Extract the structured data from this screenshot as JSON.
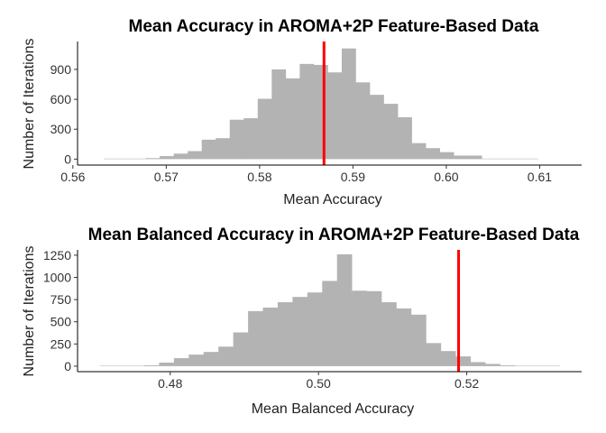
{
  "chart_data": [
    {
      "type": "bar",
      "title": "Mean Accuracy in AROMA+2P Feature-Based Data",
      "xlabel": "Mean Accuracy",
      "ylabel": "Number of Iterations",
      "xlim": [
        0.5605,
        0.6145
      ],
      "ylim": [
        -60,
        1180
      ],
      "x_ticks": [
        0.56,
        0.57,
        0.58,
        0.59,
        0.6,
        0.61
      ],
      "x_tick_labels": [
        "0.56",
        "0.57",
        "0.58",
        "0.59",
        "0.60",
        "0.61"
      ],
      "y_ticks": [
        0,
        300,
        600,
        900
      ],
      "y_tick_labels": [
        "0",
        "300",
        "600",
        "900"
      ],
      "bins": {
        "start": 0.5633,
        "width": 0.0015,
        "counts": [
          5,
          5,
          5,
          10,
          30,
          55,
          80,
          195,
          210,
          395,
          410,
          605,
          900,
          810,
          955,
          945,
          870,
          1110,
          770,
          645,
          555,
          420,
          160,
          110,
          70,
          35,
          35,
          5,
          5,
          5,
          5
        ]
      },
      "reference_line": {
        "x": 0.5869,
        "color": "#ff0000"
      },
      "bar_color": "#b3b3b3",
      "grid": false
    },
    {
      "type": "bar",
      "title": "Mean Balanced Accuracy in AROMA+2P Feature-Based Data",
      "xlabel": "Mean Balanced Accuracy",
      "ylabel": "Number of Iterations",
      "xlim": [
        0.4675,
        0.5355
      ],
      "ylim": [
        -62,
        1310
      ],
      "x_ticks": [
        0.48,
        0.5,
        0.52
      ],
      "x_tick_labels": [
        "0.48",
        "0.50",
        "0.52"
      ],
      "y_ticks": [
        0,
        250,
        500,
        750,
        1000,
        1250
      ],
      "y_tick_labels": [
        "0",
        "250",
        "500",
        "750",
        "1000",
        "1250"
      ],
      "bins": {
        "start": 0.4705,
        "width": 0.002,
        "counts": [
          5,
          5,
          5,
          10,
          40,
          90,
          130,
          160,
          220,
          380,
          620,
          660,
          720,
          780,
          830,
          960,
          1260,
          850,
          845,
          720,
          650,
          580,
          260,
          170,
          110,
          45,
          25,
          10,
          5,
          5,
          5
        ]
      },
      "reference_line": {
        "x": 0.5189,
        "color": "#ff0000"
      },
      "bar_color": "#b3b3b3",
      "grid": false
    }
  ]
}
